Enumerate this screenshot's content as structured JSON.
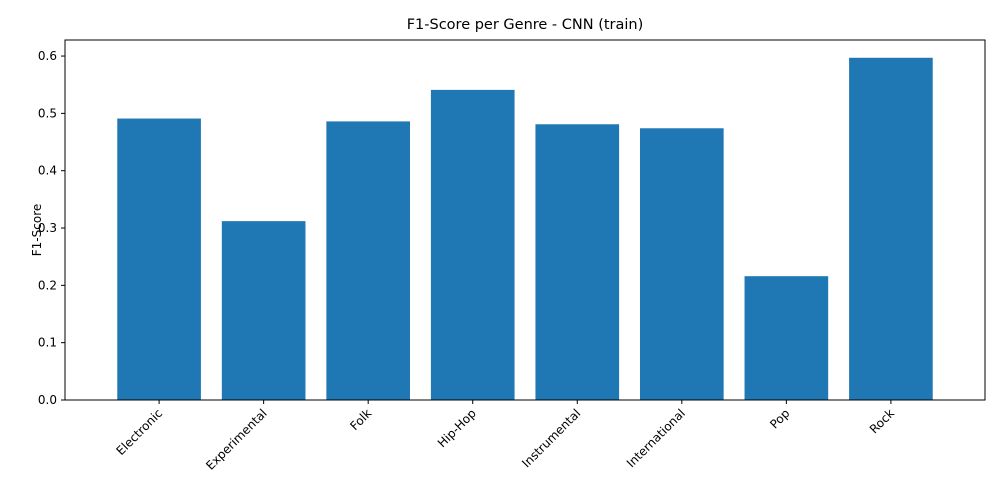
{
  "chart_data": {
    "type": "bar",
    "title": "F1-Score per Genre - CNN (train)",
    "xlabel": "",
    "ylabel": "F1-Score",
    "categories": [
      "Electronic",
      "Experimental",
      "Folk",
      "Hip-Hop",
      "Instrumental",
      "International",
      "Pop",
      "Rock"
    ],
    "values": [
      0.491,
      0.312,
      0.486,
      0.541,
      0.481,
      0.474,
      0.216,
      0.597
    ],
    "ylim": [
      0,
      0.628
    ],
    "yticks": [
      "0.0",
      "0.1",
      "0.2",
      "0.3",
      "0.4",
      "0.5",
      "0.6"
    ],
    "bar_color": "#1f77b4",
    "grid": false,
    "legend": "none"
  }
}
